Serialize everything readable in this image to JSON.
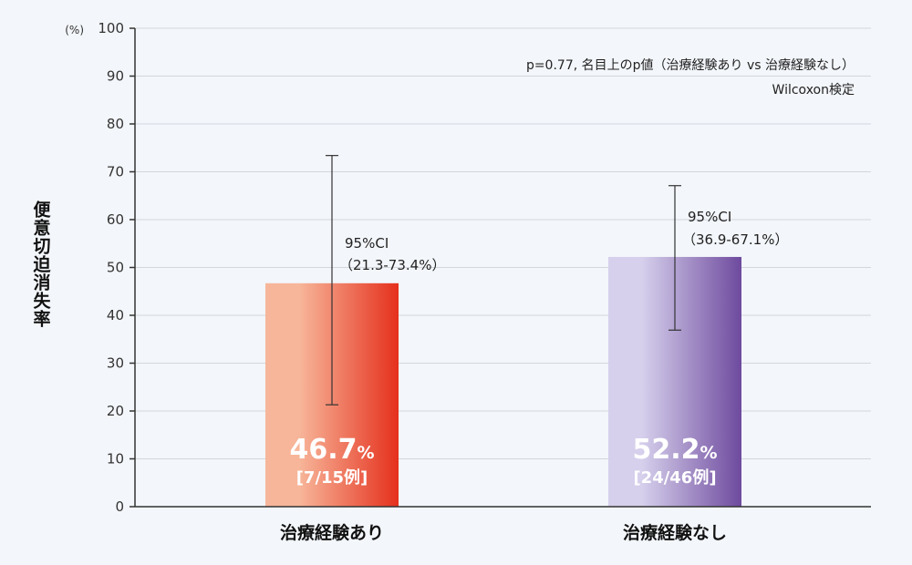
{
  "chart_data": {
    "type": "bar",
    "categories": [
      "治療経験あり",
      "治療経験なし"
    ],
    "values": [
      46.7,
      52.2
    ],
    "value_labels": [
      "46.7",
      "52.2"
    ],
    "value_unit": "%",
    "counts": [
      "[7/15例]",
      "[24/46例]"
    ],
    "ci": [
      [
        21.3,
        73.4
      ],
      [
        36.9,
        67.1
      ]
    ],
    "ci_labels": [
      {
        "line1": "95%CI",
        "line2": "（21.3-73.4%）"
      },
      {
        "line1": "95%CI",
        "line2": "（36.9-67.1%）"
      }
    ],
    "ylabel": "便意切迫消失率",
    "yunit": "(%)",
    "ylim": [
      0,
      100
    ],
    "yticks": [
      0,
      10,
      20,
      30,
      40,
      50,
      60,
      70,
      80,
      90,
      100
    ],
    "grid": true,
    "annotations": [
      "p=0.77, 名目上のp値（治療経験あり vs 治療経験なし）",
      "Wilcoxon検定"
    ],
    "colors": {
      "bar1_light": "#f7b69a",
      "bar1_dark": "#e5301c",
      "bar2_light": "#d6d0ec",
      "bar2_dark": "#6e4a9e"
    }
  }
}
